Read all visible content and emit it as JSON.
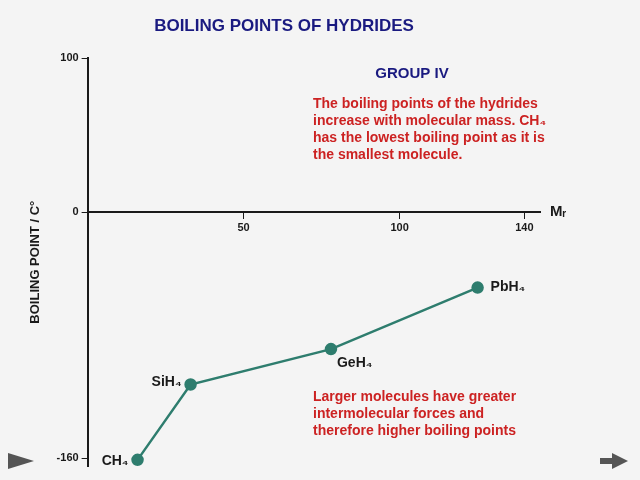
{
  "chart_data": {
    "type": "line",
    "title": "BOILING POINTS OF HYDRIDES",
    "subtitle": "GROUP IV",
    "x_label": "Mᵣ",
    "y_label": "BOILING POINT / C°",
    "categories": [
      "CH₄",
      "SiH₄",
      "GeH₄",
      "PbH₄"
    ],
    "x": [
      16,
      33,
      78,
      125
    ],
    "values": [
      -161,
      -112,
      -89,
      -49
    ],
    "color": "#2e7d6e",
    "marker": "circle",
    "xlim": [
      0,
      145
    ],
    "ylim": [
      -165,
      100
    ],
    "xticks": [
      50,
      100,
      140
    ],
    "yticks": [
      -160,
      0,
      100
    ],
    "grid": false,
    "annotations": [
      [
        "The boiling points of the hydrides",
        "increase with molecular mass. CH₄",
        "has the lowest boiling point as it is",
        "the smallest molecule."
      ],
      [
        "Larger molecules have greater",
        "intermolecular forces and",
        "therefore higher boiling points"
      ]
    ]
  }
}
